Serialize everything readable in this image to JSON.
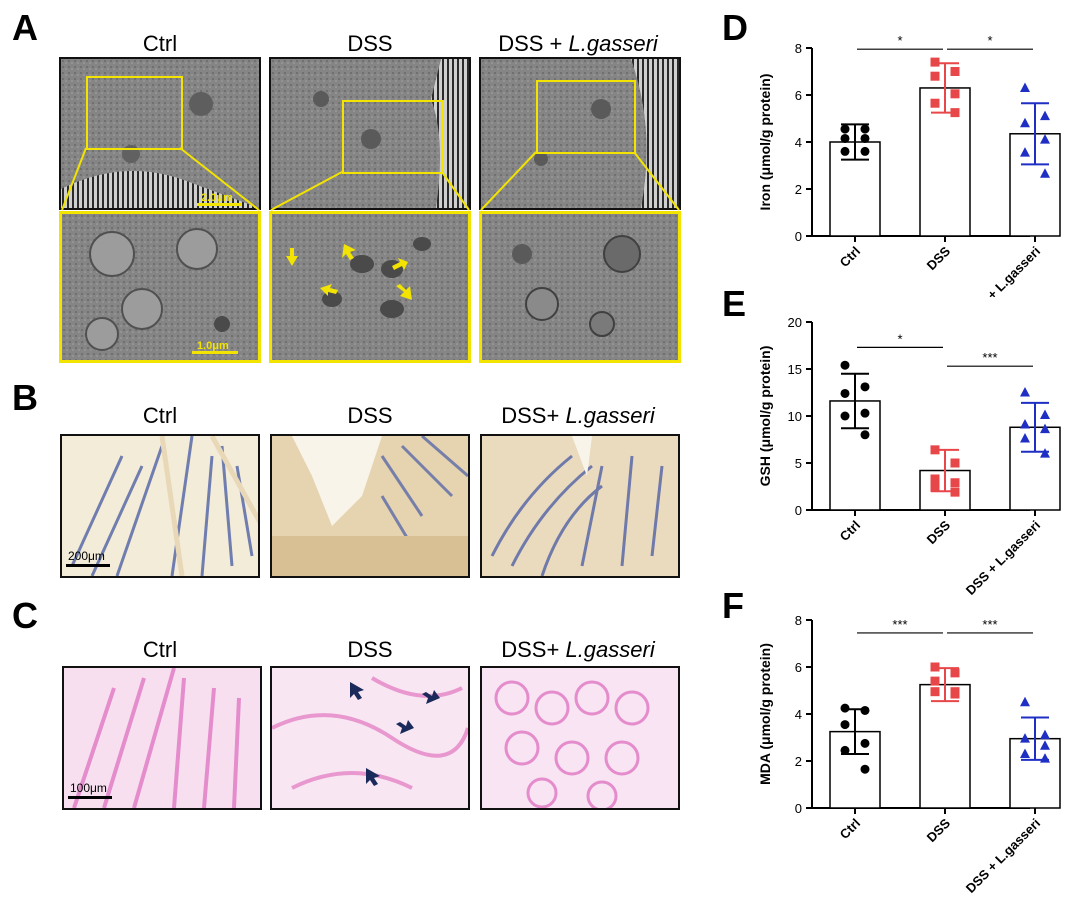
{
  "panel_labels": {
    "a": "A",
    "b": "B",
    "c": "C",
    "d": "D",
    "e": "E",
    "f": "F"
  },
  "panel_a": {
    "titles": [
      {
        "pre": "Ctrl",
        "italic": ""
      },
      {
        "pre": "DSS",
        "italic": ""
      },
      {
        "pre": "DSS + ",
        "italic": "L.gasseri"
      }
    ],
    "scale_top": "2.0μm",
    "scale_bottom": "1.0μm"
  },
  "panel_b": {
    "titles": [
      {
        "pre": "Ctrl",
        "italic": ""
      },
      {
        "pre": "DSS",
        "italic": ""
      },
      {
        "pre": "DSS+ ",
        "italic": "L.gasseri"
      }
    ],
    "scale": "200μm"
  },
  "panel_c": {
    "titles": [
      {
        "pre": "Ctrl",
        "italic": ""
      },
      {
        "pre": "DSS",
        "italic": ""
      },
      {
        "pre": "DSS+ ",
        "italic": "L.gasseri"
      }
    ],
    "scale": "100μm"
  },
  "colors": {
    "ctrl": "#000000",
    "dss": "#e8474a",
    "lg": "#1f2fc4",
    "tem_yellow": "#f2e300",
    "he_pink": "#f0a8d8",
    "ihc_blue": "#5a6aa8"
  },
  "chart_data": [
    {
      "id": "D",
      "type": "bar",
      "ylabel": "Iron (μmol/g protein)",
      "ylim": [
        0,
        8
      ],
      "yticks": [
        0,
        2,
        4,
        6,
        8
      ],
      "categories": [
        "Ctrl",
        "DSS",
        "DSS + L.gasseri"
      ],
      "values": [
        4.0,
        6.3,
        4.35
      ],
      "sd": [
        0.75,
        1.05,
        1.3
      ],
      "points": [
        [
          4.55,
          4.55,
          4.15,
          4.15,
          3.6,
          3.6
        ],
        [
          7.4,
          7.0,
          6.8,
          6.05,
          5.65,
          5.25
        ],
        [
          6.3,
          5.1,
          4.8,
          4.1,
          3.55,
          2.65
        ]
      ],
      "sig": [
        {
          "from": 0,
          "to": 1,
          "label": "*",
          "y": 7.95
        },
        {
          "from": 1,
          "to": 2,
          "label": "*",
          "y": 7.95
        }
      ]
    },
    {
      "id": "E",
      "type": "bar",
      "ylabel": "GSH (μmol/g protein)",
      "ylim": [
        0,
        20
      ],
      "yticks": [
        0,
        5,
        10,
        15,
        20
      ],
      "categories": [
        "Ctrl",
        "DSS",
        "DSS + L.gasseri"
      ],
      "values": [
        11.6,
        4.2,
        8.8
      ],
      "sd": [
        2.9,
        2.2,
        2.6
      ],
      "points": [
        [
          15.4,
          13.1,
          12.4,
          10.3,
          10.0,
          8.0
        ],
        [
          6.4,
          5.0,
          3.3,
          2.9,
          2.4,
          1.9
        ],
        [
          12.5,
          10.1,
          9.1,
          8.6,
          7.6,
          6.0
        ]
      ],
      "sig": [
        {
          "from": 0,
          "to": 1,
          "label": "*",
          "y": 17.3
        },
        {
          "from": 1,
          "to": 2,
          "label": "***",
          "y": 15.3
        }
      ]
    },
    {
      "id": "F",
      "type": "bar",
      "ylabel": "MDA (μmol/g protein)",
      "ylim": [
        0,
        8
      ],
      "yticks": [
        0,
        2,
        4,
        6,
        8
      ],
      "categories": [
        "Ctrl",
        "DSS",
        "DSS + L.gasseri"
      ],
      "values": [
        3.25,
        5.25,
        2.95
      ],
      "sd": [
        0.95,
        0.7,
        0.9
      ],
      "points": [
        [
          4.25,
          4.15,
          3.55,
          2.75,
          2.45,
          1.65
        ],
        [
          6.0,
          5.75,
          5.4,
          4.95,
          4.95,
          4.85
        ],
        [
          4.5,
          3.1,
          2.95,
          2.65,
          2.3,
          2.1
        ]
      ],
      "sig": [
        {
          "from": 0,
          "to": 1,
          "label": "***",
          "y": 7.45
        },
        {
          "from": 1,
          "to": 2,
          "label": "***",
          "y": 7.45
        }
      ]
    }
  ]
}
